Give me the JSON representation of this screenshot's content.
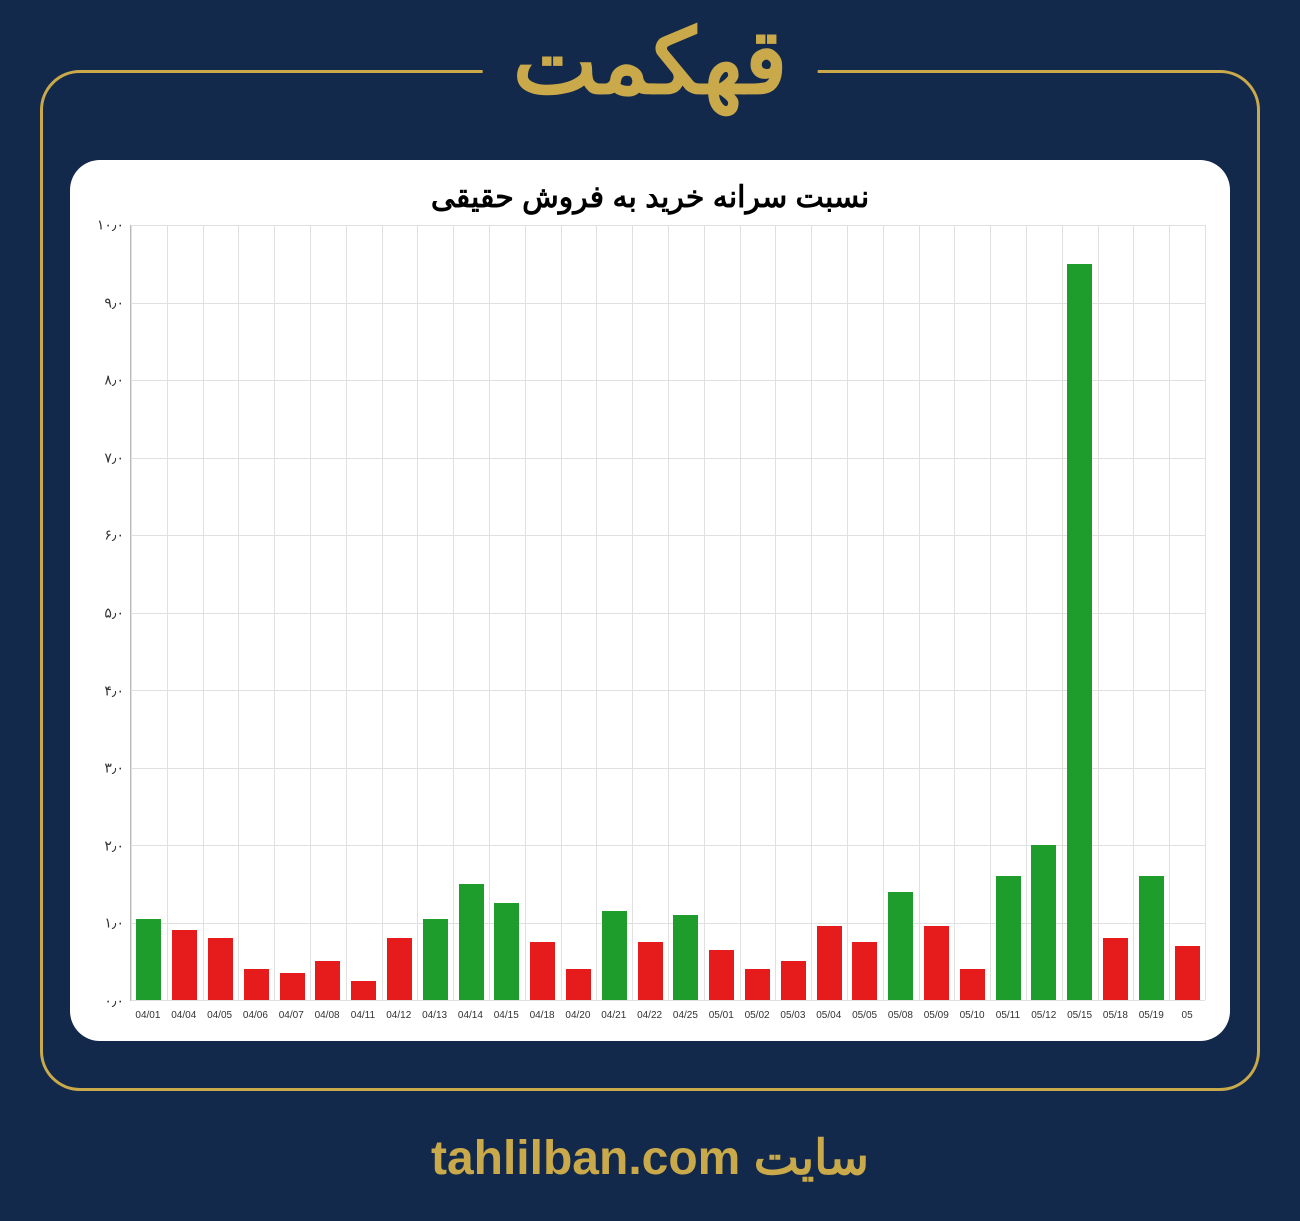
{
  "header": {
    "title": "قهکمت"
  },
  "footer": {
    "label": "سایت",
    "site": "tahlilban.com"
  },
  "chart": {
    "type": "bar",
    "title": "نسبت سرانه خرید به فروش حقیقی",
    "title_fontsize": 30,
    "background_color": "#ffffff",
    "grid_color": "#e0e0e0",
    "ylim": [
      0,
      10
    ],
    "ytick_step": 1.0,
    "ytick_labels": [
      "۰٫۰",
      "۱٫۰",
      "۲٫۰",
      "۳٫۰",
      "۴٫۰",
      "۵٫۰",
      "۶٫۰",
      "۷٫۰",
      "۸٫۰",
      "۹٫۰",
      "۱۰٫۰"
    ],
    "label_fontsize": 14,
    "xtick_fontsize": 10,
    "bar_width": 0.7,
    "color_up": "#1f9d2c",
    "color_down": "#e61b1b",
    "categories": [
      "04/01",
      "04/04",
      "04/05",
      "04/06",
      "04/07",
      "04/08",
      "04/11",
      "04/12",
      "04/13",
      "04/14",
      "04/15",
      "04/18",
      "04/20",
      "04/21",
      "04/22",
      "04/25",
      "05/01",
      "05/02",
      "05/03",
      "05/04",
      "05/05",
      "05/08",
      "05/09",
      "05/10",
      "05/11",
      "05/12",
      "05/15",
      "05/18",
      "05/19",
      "05"
    ],
    "values": [
      1.05,
      0.9,
      0.8,
      0.4,
      0.35,
      0.5,
      0.25,
      0.8,
      1.05,
      1.5,
      1.25,
      0.75,
      0.4,
      1.15,
      0.75,
      1.1,
      0.65,
      0.4,
      0.5,
      0.95,
      0.75,
      1.4,
      0.95,
      0.4,
      1.6,
      2.0,
      9.5,
      0.8,
      1.6,
      0.7
    ],
    "colors": [
      "#1f9d2c",
      "#e61b1b",
      "#e61b1b",
      "#e61b1b",
      "#e61b1b",
      "#e61b1b",
      "#e61b1b",
      "#e61b1b",
      "#1f9d2c",
      "#1f9d2c",
      "#1f9d2c",
      "#e61b1b",
      "#e61b1b",
      "#1f9d2c",
      "#e61b1b",
      "#1f9d2c",
      "#e61b1b",
      "#e61b1b",
      "#e61b1b",
      "#e61b1b",
      "#e61b1b",
      "#1f9d2c",
      "#e61b1b",
      "#e61b1b",
      "#1f9d2c",
      "#1f9d2c",
      "#1f9d2c",
      "#e61b1b",
      "#1f9d2c",
      "#e61b1b"
    ]
  },
  "theme": {
    "page_bg": "#13294b",
    "accent": "#c9a94a",
    "panel_bg": "#ffffff",
    "panel_radius": 30,
    "frame_radius": 40
  }
}
